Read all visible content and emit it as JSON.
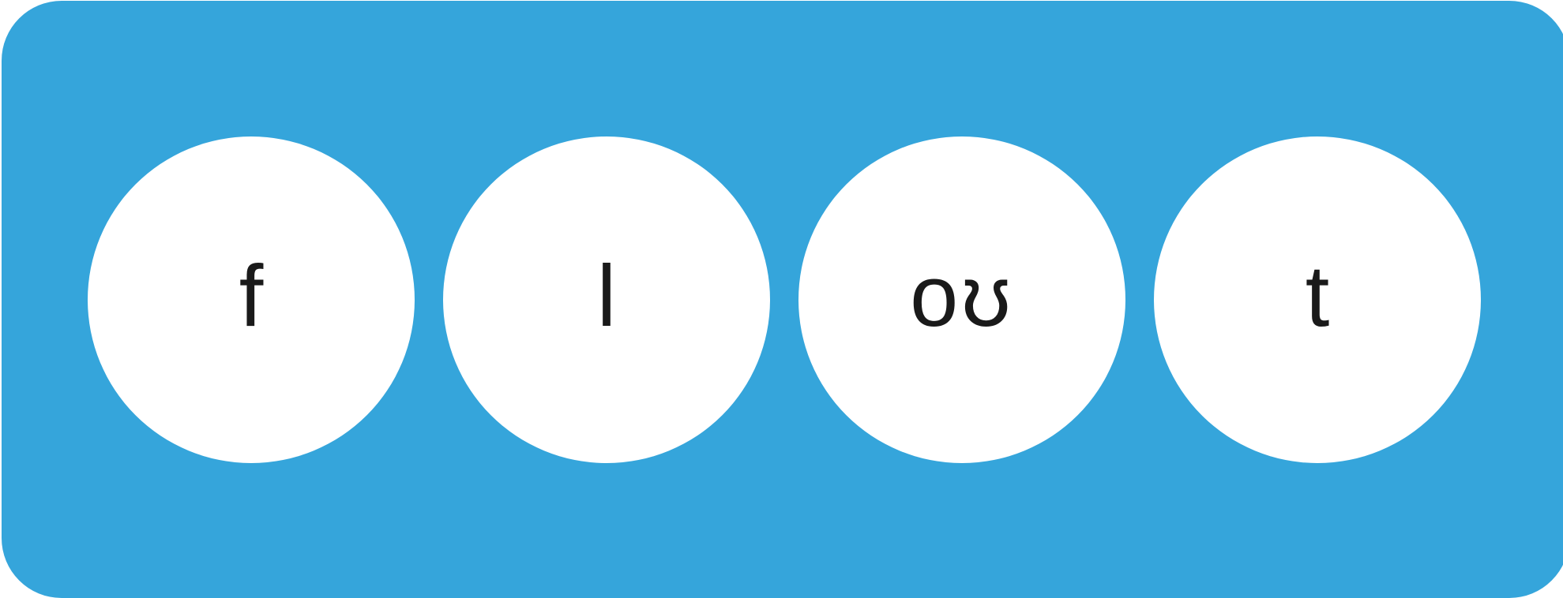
{
  "colors": {
    "panel_background": "#35a5db",
    "circle_fill": "#ffffff",
    "text": "#1a1a1a"
  },
  "tiles": [
    {
      "label": "f"
    },
    {
      "label": "l"
    },
    {
      "label": "oʊ"
    },
    {
      "label": "t"
    }
  ]
}
